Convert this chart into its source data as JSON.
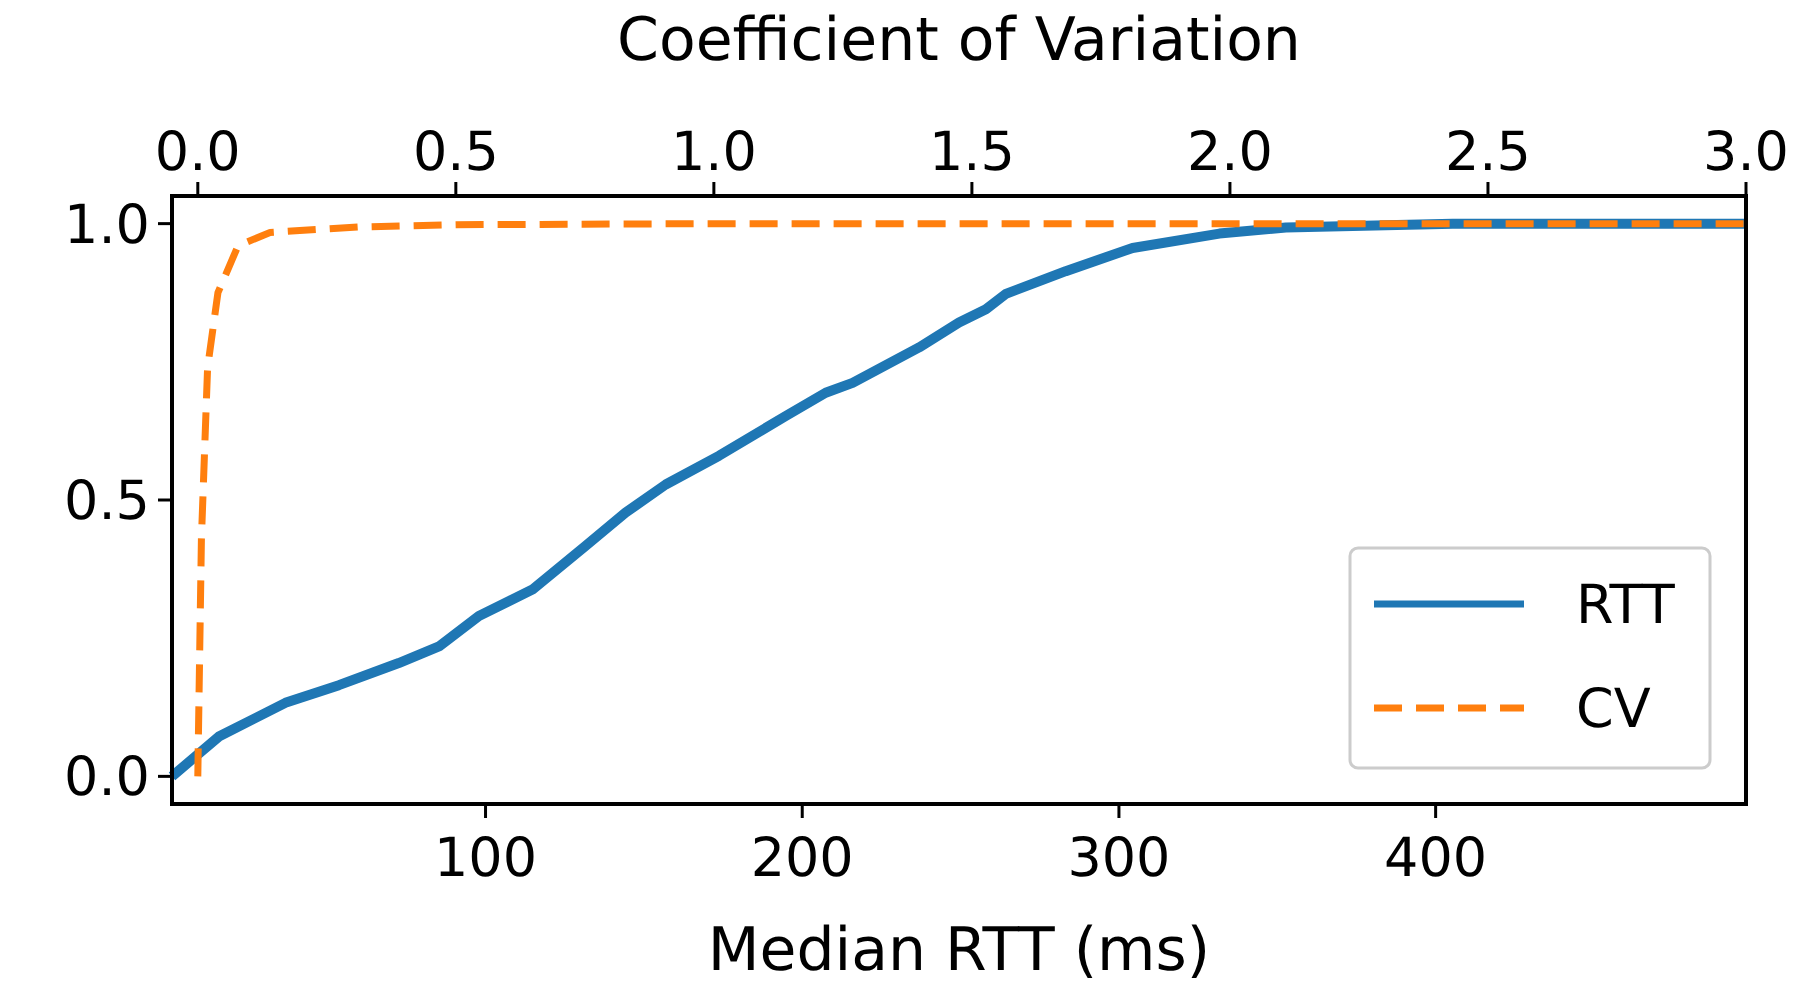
{
  "chart_data": {
    "type": "line",
    "xlabel": "Median RTT (ms)",
    "x2label": "Coefficient of Variation",
    "xlim": [
      1,
      498
    ],
    "xticks": [
      100,
      200,
      300,
      400
    ],
    "x2lim": [
      -0.05,
      3.0
    ],
    "x2ticks": [
      {
        "value": 0,
        "label": "0.0"
      },
      0.5,
      {
        "value": 1,
        "label": "1.0"
      },
      1.5,
      {
        "value": 2,
        "label": "2.0"
      },
      2.5,
      {
        "value": 3,
        "label": "3.0"
      }
    ],
    "ylim": [
      -0.05,
      1.05
    ],
    "yticks": [
      {
        "value": 0,
        "label": "0.0"
      },
      0.5,
      {
        "value": 1,
        "label": "1.0"
      }
    ],
    "legend": "bottom right",
    "grid": false,
    "series": [
      {
        "name": "RTT",
        "color": "#1f77b4",
        "line_style": "solid",
        "x": [
          1,
          15.8,
          36.8,
          53.7,
          72.6,
          85.3,
          97.9,
          114.8,
          131.6,
          144.2,
          156.9,
          173.7,
          194.8,
          207.4,
          215.9,
          236.9,
          249.5,
          258,
          264.3,
          283.2,
          304.3,
          331.7,
          352.7,
          405.4,
          498
        ],
        "values": [
          0,
          0.072,
          0.133,
          0.165,
          0.205,
          0.235,
          0.29,
          0.338,
          0.417,
          0.477,
          0.528,
          0.58,
          0.652,
          0.694,
          0.712,
          0.776,
          0.821,
          0.845,
          0.873,
          0.914,
          0.956,
          0.982,
          0.993,
          1.0,
          1.0
        ]
      },
      {
        "name": "CV",
        "color": "#ff7f0e",
        "line_style": "dashed",
        "axis": "x2",
        "x": [
          0,
          0.007,
          0.019,
          0.039,
          0.078,
          0.14,
          0.31,
          0.5,
          1.0,
          3.0
        ],
        "values": [
          0,
          0.43,
          0.74,
          0.875,
          0.96,
          0.984,
          0.994,
          0.998,
          1.0,
          1.0
        ]
      }
    ]
  }
}
